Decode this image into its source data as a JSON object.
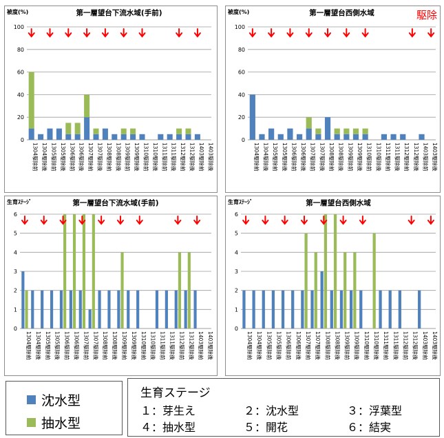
{
  "colors": {
    "submerged": "#4f81bd",
    "emergent": "#9bbb59",
    "arrow": "#ff0000",
    "grid": "#9a9a9a"
  },
  "chart_data": [
    {
      "type": "bar",
      "title": "第一層望台下流水域(手前)",
      "ylabel": "被度(%)",
      "ylim": [
        0,
        100
      ],
      "yticks": [
        0,
        20,
        40,
        60,
        80,
        100
      ],
      "stacked": true,
      "categories": [
        "1304駆除前",
        "1304駆除後",
        "1305駆除前",
        "1305駆除後",
        "1306駆除前",
        "1306駆除後",
        "1307駆除前",
        "1307駆除後",
        "1308駆除前",
        "1308駆除後",
        "1309駆除前",
        "1309駆除後",
        "1310駆除前",
        "1310駆除後",
        "1311駆除前",
        "1311駆除後",
        "1312駆除前",
        "1312駆除後",
        "1403駆除前",
        "1403駆除後"
      ],
      "series": [
        {
          "name": "沈水型",
          "values": [
            10,
            5,
            10,
            10,
            5,
            5,
            20,
            5,
            10,
            5,
            5,
            5,
            5,
            0,
            5,
            5,
            5,
            5,
            5,
            0
          ]
        },
        {
          "name": "抽水型",
          "values": [
            50,
            0,
            0,
            0,
            10,
            10,
            20,
            5,
            0,
            0,
            5,
            5,
            0,
            0,
            0,
            0,
            5,
            5,
            0,
            0
          ]
        }
      ],
      "arrows_at": [
        "1304駆除前",
        "1305駆除前",
        "1306駆除前",
        "1307駆除前",
        "1308駆除前",
        "1309駆除前",
        "1310駆除前",
        "1312駆除前",
        "1403駆除前"
      ],
      "annotation": ""
    },
    {
      "type": "bar",
      "title": "第一層望台西側水域",
      "ylabel": "被度(%)",
      "ylim": [
        0,
        100
      ],
      "yticks": [
        0,
        20,
        40,
        60,
        80,
        100
      ],
      "stacked": true,
      "categories": [
        "1304駆除前",
        "1304駆除後",
        "1305駆除前",
        "1305駆除後",
        "1306駆除前",
        "1306駆除後",
        "1307駆除前",
        "1307駆除後",
        "1308駆除前",
        "1308駆除後",
        "1309駆除前",
        "1309駆除後",
        "1310駆除前",
        "1310駆除後",
        "1311駆除前",
        "1311駆除後",
        "1312駆除前",
        "1312駆除後",
        "1403駆除前",
        "1403駆除後"
      ],
      "series": [
        {
          "name": "沈水型",
          "values": [
            40,
            5,
            10,
            5,
            10,
            5,
            10,
            5,
            20,
            5,
            5,
            5,
            5,
            0,
            5,
            5,
            5,
            0,
            5,
            0
          ]
        },
        {
          "name": "抽水型",
          "values": [
            0,
            0,
            0,
            0,
            0,
            0,
            10,
            5,
            0,
            5,
            5,
            5,
            5,
            0,
            0,
            0,
            0,
            0,
            0,
            0
          ]
        }
      ],
      "arrows_at": [
        "1304駆除前",
        "1305駆除前",
        "1306駆除前",
        "1307駆除前",
        "1308駆除前",
        "1309駆除前",
        "1310駆除前",
        "1312駆除後",
        "1403駆除後"
      ],
      "annotation": "駆除"
    },
    {
      "type": "bar",
      "title": "第一層望台下流水域(手前)",
      "ylabel": "生育ｽﾃｰｼﾞ",
      "ylim": [
        0,
        6
      ],
      "yticks": [
        0,
        1,
        2,
        3,
        4,
        5,
        6
      ],
      "stacked": false,
      "categories": [
        "1304駆除前",
        "1304駆除後",
        "1305駆除前",
        "1305駆除後",
        "1306駆除前",
        "1306駆除後",
        "1307駆除前",
        "1307駆除後",
        "1308駆除前",
        "1308駆除後",
        "1309駆除前",
        "1309駆除後",
        "1310駆除前",
        "1310駆除後",
        "1311駆除前",
        "1311駆除後",
        "1312駆除前",
        "1312駆除後",
        "1403駆除前",
        "1403駆除後"
      ],
      "series": [
        {
          "name": "沈水型",
          "values": [
            3,
            2,
            2,
            2,
            2,
            2,
            2,
            1,
            2,
            2,
            2,
            2,
            2,
            0,
            2,
            2,
            2,
            2,
            2,
            0
          ]
        },
        {
          "name": "抽水型",
          "values": [
            2,
            0,
            0,
            0,
            6,
            6,
            6,
            6,
            0,
            0,
            4,
            0,
            0,
            0,
            0,
            0,
            4,
            4,
            0,
            0
          ]
        }
      ],
      "arrows_at": [
        "1304駆除前",
        "1305駆除前",
        "1306駆除前",
        "1307駆除前",
        "1308駆除前",
        "1309駆除前",
        "1310駆除前",
        "1312駆除前",
        "1403駆除前"
      ],
      "annotation": ""
    },
    {
      "type": "bar",
      "title": "第一層望台西側水域",
      "ylabel": "生育ｽﾃｰｼﾞ",
      "ylim": [
        0,
        6
      ],
      "yticks": [
        0,
        1,
        2,
        3,
        4,
        5,
        6
      ],
      "stacked": false,
      "categories": [
        "1304駆除前",
        "1304駆除後",
        "1305駆除前",
        "1305駆除後",
        "1306駆除前",
        "1306駆除後",
        "1307駆除前",
        "1307駆除後",
        "1308駆除前",
        "1308駆除後",
        "1309駆除前",
        "1309駆除後",
        "1310駆除前",
        "1310駆除後",
        "1311駆除前",
        "1311駆除後",
        "1312駆除前",
        "1312駆除後",
        "1403駆除前",
        "1403駆除後"
      ],
      "series": [
        {
          "name": "沈水型",
          "values": [
            2,
            2,
            2,
            2,
            2,
            2,
            2,
            2,
            3,
            2,
            2,
            2,
            2,
            0,
            2,
            2,
            2,
            0,
            2,
            0
          ]
        },
        {
          "name": "抽水型",
          "values": [
            0,
            0,
            0,
            0,
            0,
            0,
            5,
            4,
            6,
            6,
            4,
            4,
            0,
            5,
            0,
            0,
            0,
            0,
            0,
            0
          ]
        }
      ],
      "arrows_at": [
        "1304駆除前",
        "1305駆除前",
        "1306駆除前",
        "1307駆除前",
        "1308駆除前",
        "1309駆除前",
        "1310駆除前",
        "1312駆除後",
        "1403駆除後"
      ],
      "annotation": ""
    }
  ],
  "legend": {
    "items": [
      {
        "label": "沈水型",
        "color": "#4f81bd"
      },
      {
        "label": "抽水型",
        "color": "#9bbb59"
      }
    ]
  },
  "stage_legend": {
    "title": "生育ステージ",
    "rows": [
      [
        "１：芽生え",
        "２：沈水型",
        "３：浮葉型"
      ],
      [
        "４：抽水型",
        "５：開花",
        "６：結実"
      ]
    ]
  }
}
